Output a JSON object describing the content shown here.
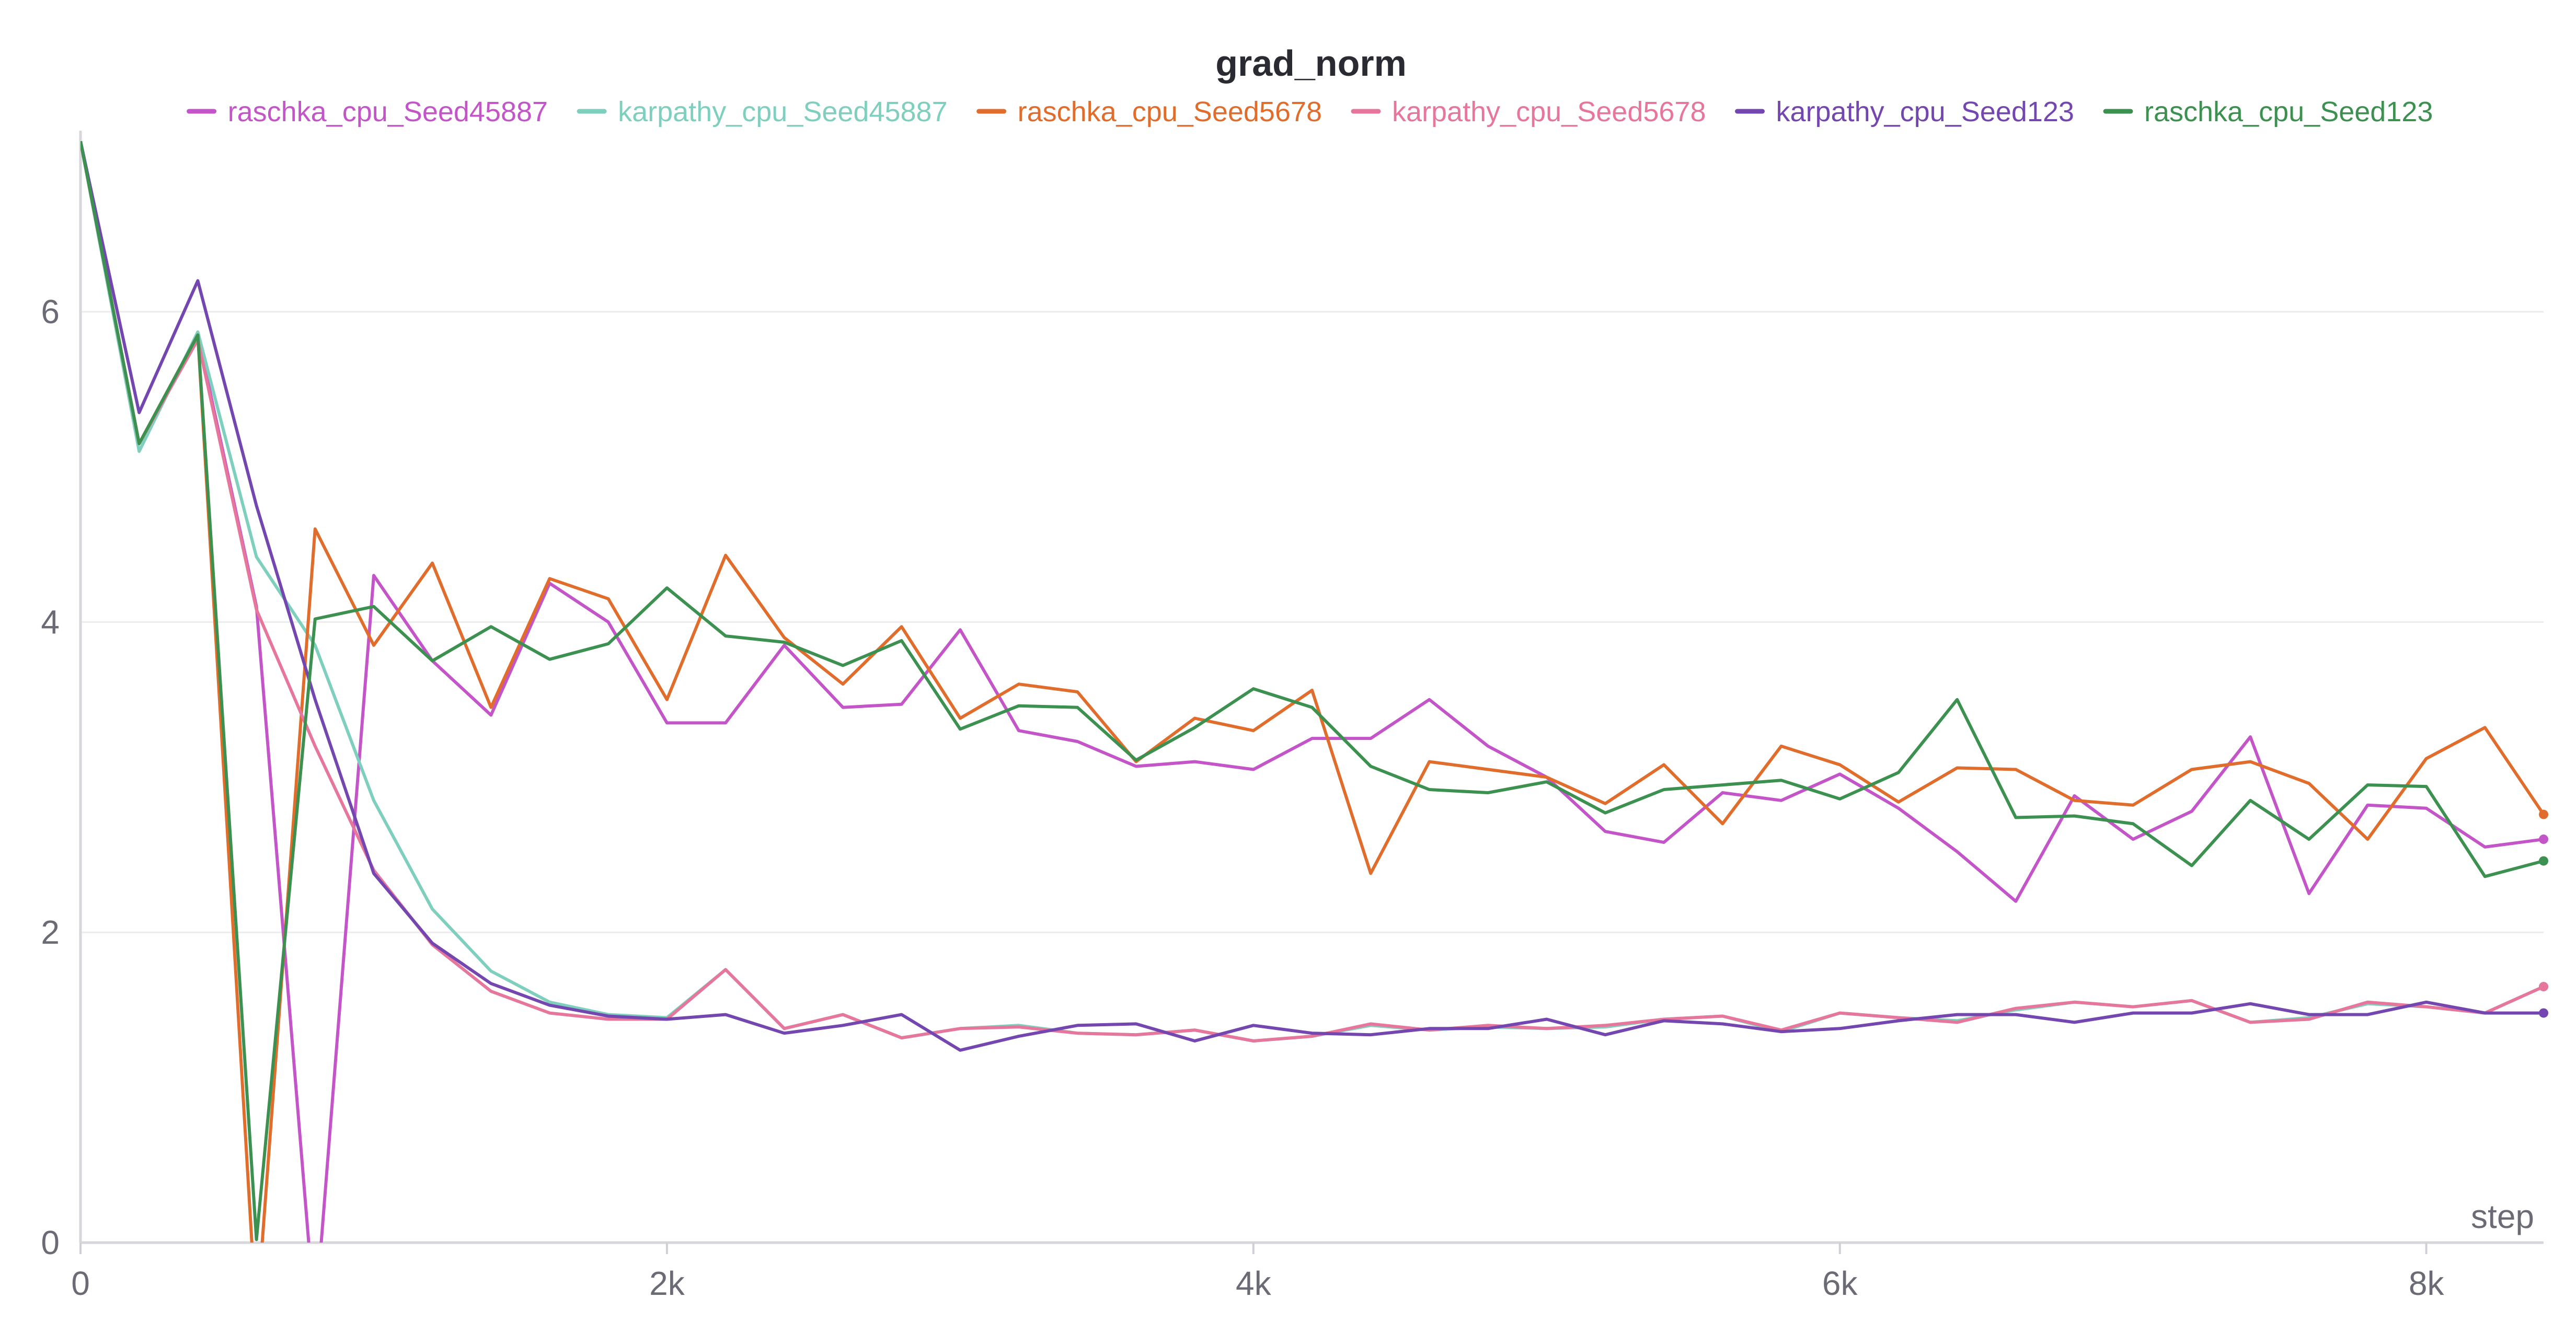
{
  "chart_data": {
    "type": "line",
    "title": "grad_norm",
    "xlabel": "step",
    "ylabel": "",
    "xlim": [
      0,
      8400
    ],
    "ylim": [
      0,
      7.1
    ],
    "xticks": [
      0,
      2000,
      4000,
      6000,
      8000
    ],
    "xtick_labels": [
      "0",
      "2k",
      "4k",
      "6k",
      "8k"
    ],
    "yticks": [
      0,
      2,
      4,
      6
    ],
    "ytick_labels": [
      "0",
      "2",
      "4",
      "6"
    ],
    "grid": true,
    "legend_position": "top",
    "series": [
      {
        "name": "raschka_cpu_Seed45887",
        "color": "#c355c9",
        "x": [
          0,
          200,
          400,
          600,
          800,
          1000,
          1200,
          1400,
          1600,
          1800,
          2000,
          2200,
          2400,
          2600,
          2800,
          3000,
          3200,
          3400,
          3600,
          3800,
          4000,
          4200,
          4400,
          4600,
          4800,
          5000,
          5200,
          5400,
          5600,
          5800,
          6000,
          6200,
          6400,
          6600,
          6800,
          7000,
          7200,
          7400,
          7600,
          7800,
          8000,
          8200,
          8400
        ],
        "y": [
          7.1,
          5.15,
          5.85,
          4.1,
          -0.5,
          4.3,
          3.75,
          3.4,
          4.25,
          4.0,
          3.35,
          3.35,
          3.85,
          3.45,
          3.47,
          3.95,
          3.3,
          3.23,
          3.07,
          3.1,
          3.05,
          3.25,
          3.25,
          3.5,
          3.2,
          3.0,
          2.65,
          2.58,
          2.9,
          2.85,
          3.02,
          2.8,
          2.52,
          2.2,
          2.88,
          2.6,
          2.78,
          3.26,
          2.25,
          2.82,
          2.8,
          2.55,
          2.6
        ]
      },
      {
        "name": "karpathy_cpu_Seed45887",
        "color": "#7ecfbd",
        "x": [
          0,
          200,
          400,
          600,
          800,
          1000,
          1200,
          1400,
          1600,
          1800,
          2000,
          2200,
          2400,
          2600,
          2800,
          3000,
          3200,
          3400,
          3600,
          3800,
          4000,
          4200,
          4400,
          4600,
          4800,
          5000,
          5200,
          5400,
          5600,
          5800,
          6000,
          6200,
          6400,
          6600,
          6800,
          7000,
          7200,
          7400,
          7600,
          7800,
          8000,
          8200,
          8400
        ],
        "y": [
          7.1,
          5.1,
          5.87,
          4.42,
          3.85,
          2.85,
          2.15,
          1.75,
          1.55,
          1.47,
          1.45,
          1.76,
          1.38,
          1.47,
          1.32,
          1.38,
          1.4,
          1.35,
          1.34,
          1.37,
          1.3,
          1.33,
          1.4,
          1.37,
          1.39,
          1.38,
          1.39,
          1.44,
          1.46,
          1.36,
          1.48,
          1.45,
          1.43,
          1.5,
          1.55,
          1.52,
          1.56,
          1.42,
          1.45,
          1.54,
          1.52,
          1.48,
          1.65
        ]
      },
      {
        "name": "raschka_cpu_Seed5678",
        "color": "#e06d2c",
        "x": [
          0,
          200,
          400,
          600,
          800,
          1000,
          1200,
          1400,
          1600,
          1800,
          2000,
          2200,
          2400,
          2600,
          2800,
          3000,
          3200,
          3400,
          3600,
          3800,
          4000,
          4200,
          4400,
          4600,
          4800,
          5000,
          5200,
          5400,
          5600,
          5800,
          6000,
          6200,
          6400,
          6600,
          6800,
          7000,
          7200,
          7400,
          7600,
          7800,
          8000,
          8200,
          8400
        ],
        "y": [
          7.1,
          5.15,
          5.85,
          -0.5,
          4.6,
          3.85,
          4.38,
          3.45,
          4.28,
          4.15,
          3.5,
          4.43,
          3.9,
          3.6,
          3.97,
          3.38,
          3.6,
          3.55,
          3.1,
          3.38,
          3.3,
          3.56,
          2.38,
          3.1,
          3.05,
          3.0,
          2.83,
          3.08,
          2.7,
          3.2,
          3.08,
          2.84,
          3.06,
          3.05,
          2.85,
          2.82,
          3.05,
          3.1,
          2.96,
          2.6,
          3.12,
          3.32,
          2.76
        ]
      },
      {
        "name": "karpathy_cpu_Seed5678",
        "color": "#e7769c",
        "x": [
          0,
          200,
          400,
          600,
          800,
          1000,
          1200,
          1400,
          1600,
          1800,
          2000,
          2200,
          2400,
          2600,
          2800,
          3000,
          3200,
          3400,
          3600,
          3800,
          4000,
          4200,
          4400,
          4600,
          4800,
          5000,
          5200,
          5400,
          5600,
          5800,
          6000,
          6200,
          6400,
          6600,
          6800,
          7000,
          7200,
          7400,
          7600,
          7800,
          8000,
          8200,
          8400
        ],
        "y": [
          7.1,
          5.15,
          5.82,
          4.08,
          3.2,
          2.4,
          1.92,
          1.62,
          1.48,
          1.44,
          1.44,
          1.76,
          1.38,
          1.47,
          1.32,
          1.38,
          1.39,
          1.35,
          1.34,
          1.37,
          1.3,
          1.33,
          1.41,
          1.37,
          1.4,
          1.38,
          1.4,
          1.44,
          1.46,
          1.37,
          1.48,
          1.45,
          1.42,
          1.51,
          1.55,
          1.52,
          1.56,
          1.42,
          1.44,
          1.55,
          1.52,
          1.48,
          1.65
        ]
      },
      {
        "name": "karpathy_cpu_Seed123",
        "color": "#7447b0",
        "x": [
          0,
          200,
          400,
          600,
          800,
          1000,
          1200,
          1400,
          1600,
          1800,
          2000,
          2200,
          2400,
          2600,
          2800,
          3000,
          3200,
          3400,
          3600,
          3800,
          4000,
          4200,
          4400,
          4600,
          4800,
          5000,
          5200,
          5400,
          5600,
          5800,
          6000,
          6200,
          6400,
          6600,
          6800,
          7000,
          7200,
          7400,
          7600,
          7800,
          8000,
          8200,
          8400
        ],
        "y": [
          7.1,
          5.35,
          6.2,
          4.75,
          3.5,
          2.38,
          1.93,
          1.67,
          1.53,
          1.46,
          1.44,
          1.47,
          1.35,
          1.4,
          1.47,
          1.24,
          1.33,
          1.4,
          1.41,
          1.3,
          1.4,
          1.35,
          1.34,
          1.38,
          1.38,
          1.44,
          1.34,
          1.43,
          1.41,
          1.36,
          1.38,
          1.43,
          1.47,
          1.47,
          1.42,
          1.48,
          1.48,
          1.54,
          1.47,
          1.47,
          1.55,
          1.48,
          1.48
        ]
      },
      {
        "name": "raschka_cpu_Seed123",
        "color": "#3d9150",
        "x": [
          0,
          200,
          400,
          600,
          800,
          1000,
          1200,
          1400,
          1600,
          1800,
          2000,
          2200,
          2400,
          2600,
          2800,
          3000,
          3200,
          3400,
          3600,
          3800,
          4000,
          4200,
          4400,
          4600,
          4800,
          5000,
          5200,
          5400,
          5600,
          5800,
          6000,
          6200,
          6400,
          6600,
          6800,
          7000,
          7200,
          7400,
          7600,
          7800,
          8000,
          8200,
          8400
        ],
        "y": [
          7.1,
          5.15,
          5.85,
          0.02,
          4.02,
          4.1,
          3.75,
          3.97,
          3.76,
          3.86,
          4.22,
          3.91,
          3.87,
          3.72,
          3.88,
          3.31,
          3.46,
          3.45,
          3.11,
          3.32,
          3.57,
          3.45,
          3.07,
          2.92,
          2.9,
          2.97,
          2.77,
          2.92,
          2.95,
          2.98,
          2.86,
          3.03,
          3.5,
          2.74,
          2.75,
          2.7,
          2.43,
          2.85,
          2.6,
          2.95,
          2.94,
          2.36,
          2.46
        ]
      }
    ]
  }
}
